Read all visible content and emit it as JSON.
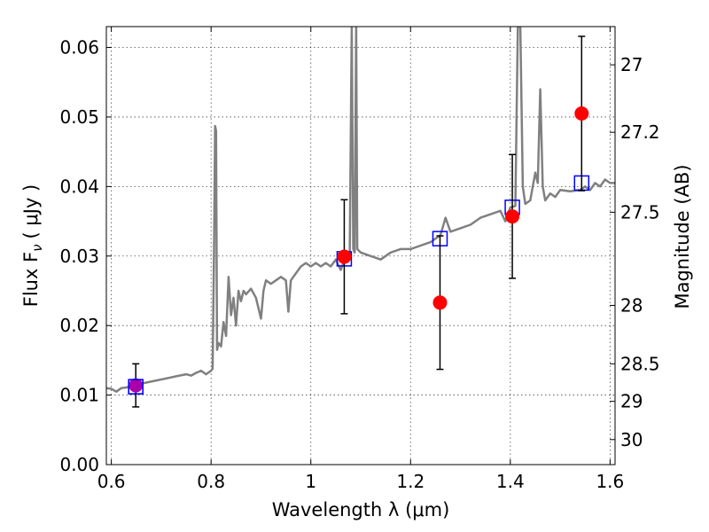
{
  "chart_data": {
    "type": "scatter",
    "xlabel": "Wavelength  λ (μm)",
    "ylabel": "Flux  F",
    "ylabel_sub": "ν",
    "ylabel_unit": "( μJy )",
    "y2label": "Magnitude (AB)",
    "xlim": [
      0.59,
      1.61
    ],
    "ylim": [
      0.0,
      0.063
    ],
    "grid": true,
    "x_ticks": [
      {
        "value": 0.6,
        "label": "0.6"
      },
      {
        "value": 0.8,
        "label": "0.8"
      },
      {
        "value": 1.0,
        "label": "1"
      },
      {
        "value": 1.2,
        "label": "1.2"
      },
      {
        "value": 1.4,
        "label": "1.4"
      },
      {
        "value": 1.6,
        "label": "1.6"
      }
    ],
    "y_ticks": [
      {
        "value": 0.0,
        "label": "0.00"
      },
      {
        "value": 0.01,
        "label": "0.01"
      },
      {
        "value": 0.02,
        "label": "0.02"
      },
      {
        "value": 0.03,
        "label": "0.03"
      },
      {
        "value": 0.04,
        "label": "0.04"
      },
      {
        "value": 0.05,
        "label": "0.05"
      },
      {
        "value": 0.06,
        "label": "0.06"
      }
    ],
    "y2_ticks": [
      {
        "label": "27",
        "flux": 0.0575
      },
      {
        "label": "27.2",
        "flux": 0.0478
      },
      {
        "label": "27.5",
        "flux": 0.0363
      },
      {
        "label": "28",
        "flux": 0.0229
      },
      {
        "label": "28.5",
        "flux": 0.0145
      },
      {
        "label": "29",
        "flux": 0.0091
      },
      {
        "label": "30",
        "flux": 0.0036
      }
    ],
    "series": [
      {
        "kind": "line",
        "color": "#808080",
        "points": [
          [
            0.59,
            0.011
          ],
          [
            0.6,
            0.0109
          ],
          [
            0.61,
            0.0105
          ],
          [
            0.62,
            0.011
          ],
          [
            0.63,
            0.0111
          ],
          [
            0.65,
            0.0115
          ],
          [
            0.67,
            0.0118
          ],
          [
            0.69,
            0.0121
          ],
          [
            0.71,
            0.0124
          ],
          [
            0.73,
            0.0127
          ],
          [
            0.75,
            0.013
          ],
          [
            0.76,
            0.0128
          ],
          [
            0.77,
            0.0132
          ],
          [
            0.78,
            0.0135
          ],
          [
            0.79,
            0.013
          ],
          [
            0.8,
            0.0135
          ],
          [
            0.803,
            0.0138
          ],
          [
            0.806,
            0.032
          ],
          [
            0.808,
            0.0487
          ],
          [
            0.81,
            0.048
          ],
          [
            0.812,
            0.0165
          ],
          [
            0.815,
            0.0175
          ],
          [
            0.82,
            0.017
          ],
          [
            0.825,
            0.0205
          ],
          [
            0.83,
            0.0185
          ],
          [
            0.835,
            0.027
          ],
          [
            0.84,
            0.0215
          ],
          [
            0.845,
            0.024
          ],
          [
            0.85,
            0.02
          ],
          [
            0.855,
            0.025
          ],
          [
            0.86,
            0.0235
          ],
          [
            0.865,
            0.025
          ],
          [
            0.87,
            0.0245
          ],
          [
            0.88,
            0.0253
          ],
          [
            0.89,
            0.024
          ],
          [
            0.9,
            0.021
          ],
          [
            0.905,
            0.025
          ],
          [
            0.91,
            0.0265
          ],
          [
            0.92,
            0.026
          ],
          [
            0.93,
            0.0265
          ],
          [
            0.94,
            0.027
          ],
          [
            0.95,
            0.0265
          ],
          [
            0.955,
            0.022
          ],
          [
            0.96,
            0.0265
          ],
          [
            0.97,
            0.0275
          ],
          [
            0.98,
            0.0285
          ],
          [
            0.99,
            0.029
          ],
          [
            1.0,
            0.0285
          ],
          [
            1.01,
            0.029
          ],
          [
            1.02,
            0.0285
          ],
          [
            1.03,
            0.029
          ],
          [
            1.04,
            0.0285
          ],
          [
            1.05,
            0.0295
          ],
          [
            1.06,
            0.028
          ],
          [
            1.07,
            0.03
          ],
          [
            1.078,
            0.03
          ],
          [
            1.082,
            0.063
          ],
          [
            1.085,
            0.031
          ],
          [
            1.088,
            0.0305
          ],
          [
            1.091,
            0.063
          ],
          [
            1.093,
            0.031
          ],
          [
            1.1,
            0.0305
          ],
          [
            1.12,
            0.03
          ],
          [
            1.14,
            0.0295
          ],
          [
            1.16,
            0.0305
          ],
          [
            1.18,
            0.031
          ],
          [
            1.2,
            0.031
          ],
          [
            1.22,
            0.0315
          ],
          [
            1.24,
            0.032
          ],
          [
            1.26,
            0.033
          ],
          [
            1.27,
            0.0355
          ],
          [
            1.28,
            0.0335
          ],
          [
            1.3,
            0.034
          ],
          [
            1.32,
            0.0345
          ],
          [
            1.34,
            0.0355
          ],
          [
            1.36,
            0.036
          ],
          [
            1.38,
            0.0365
          ],
          [
            1.39,
            0.035
          ],
          [
            1.4,
            0.037
          ],
          [
            1.41,
            0.0372
          ],
          [
            1.415,
            0.063
          ],
          [
            1.42,
            0.063
          ],
          [
            1.425,
            0.04
          ],
          [
            1.43,
            0.0375
          ],
          [
            1.44,
            0.038
          ],
          [
            1.45,
            0.042
          ],
          [
            1.455,
            0.0405
          ],
          [
            1.46,
            0.054
          ],
          [
            1.465,
            0.04
          ],
          [
            1.47,
            0.038
          ],
          [
            1.48,
            0.039
          ],
          [
            1.49,
            0.0385
          ],
          [
            1.5,
            0.0395
          ],
          [
            1.52,
            0.0393
          ],
          [
            1.54,
            0.0395
          ],
          [
            1.55,
            0.04
          ],
          [
            1.56,
            0.0395
          ],
          [
            1.57,
            0.0405
          ],
          [
            1.58,
            0.04
          ],
          [
            1.59,
            0.041
          ],
          [
            1.6,
            0.0405
          ],
          [
            1.61,
            0.0405
          ]
        ]
      },
      {
        "kind": "model-photometry",
        "marker": "open-square",
        "color": "#0000ff",
        "x": [
          0.649,
          1.067,
          1.259,
          1.404,
          1.543
        ],
        "y": [
          0.0112,
          0.0296,
          0.0325,
          0.037,
          0.0405
        ]
      },
      {
        "kind": "observed",
        "marker": "filled-circle",
        "color": "#ff0000",
        "x": [
          0.649,
          1.067,
          1.259,
          1.404,
          1.543
        ],
        "y": [
          0.0114,
          0.0299,
          0.0233,
          0.0357,
          0.0505
        ],
        "yerr": [
          0.0031,
          0.0082,
          0.0096,
          0.0089,
          0.0111
        ]
      }
    ],
    "highlight_color": "#aa00aa"
  }
}
